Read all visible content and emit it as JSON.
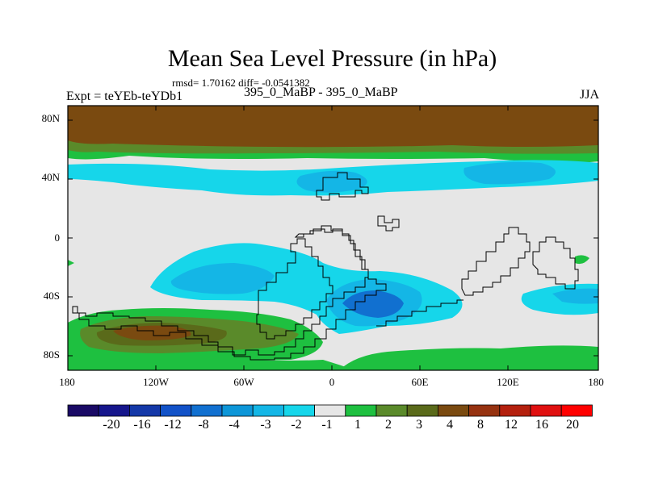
{
  "title": "Mean Sea Level Pressure (in hPa)",
  "stats": "rmsd= 1.70162 diff= -0.0541382",
  "left_label": "Expt = teYEb-teYDb1",
  "center_label": "395_0_MaBP - 395_0_MaBP",
  "right_label": "JJA",
  "lat_ticks": [
    "80N",
    "40N",
    "0",
    "40S",
    "80S"
  ],
  "lon_ticks": [
    "180",
    "120W",
    "60W",
    "0",
    "60E",
    "120E",
    "180"
  ],
  "colorbar": {
    "labels": [
      "-20",
      "-16",
      "-12",
      "-8",
      "-4",
      "-3",
      "-2",
      "-1",
      "1",
      "2",
      "3",
      "4",
      "8",
      "12",
      "16",
      "20"
    ],
    "colors": [
      "#1a0a66",
      "#16168c",
      "#1438a8",
      "#1252c8",
      "#1170d0",
      "#0d96d8",
      "#14b6e6",
      "#16d6ea",
      "#e6e6e6",
      "#1ec040",
      "#5a8a2a",
      "#5a6a1a",
      "#7a4a10",
      "#963210",
      "#b4200e",
      "#e01010",
      "#ff0000"
    ]
  },
  "colors": {
    "background": "#e6e6e6",
    "arctic_brown": "#7a4a10",
    "dark_olive": "#5a6a1a",
    "olive_green": "#5a8a2a",
    "green": "#1ec040",
    "cyan_light": "#16d6ea",
    "cyan_mid": "#14b6e6",
    "blue_mid": "#1170d0",
    "coastline": "#000000"
  }
}
